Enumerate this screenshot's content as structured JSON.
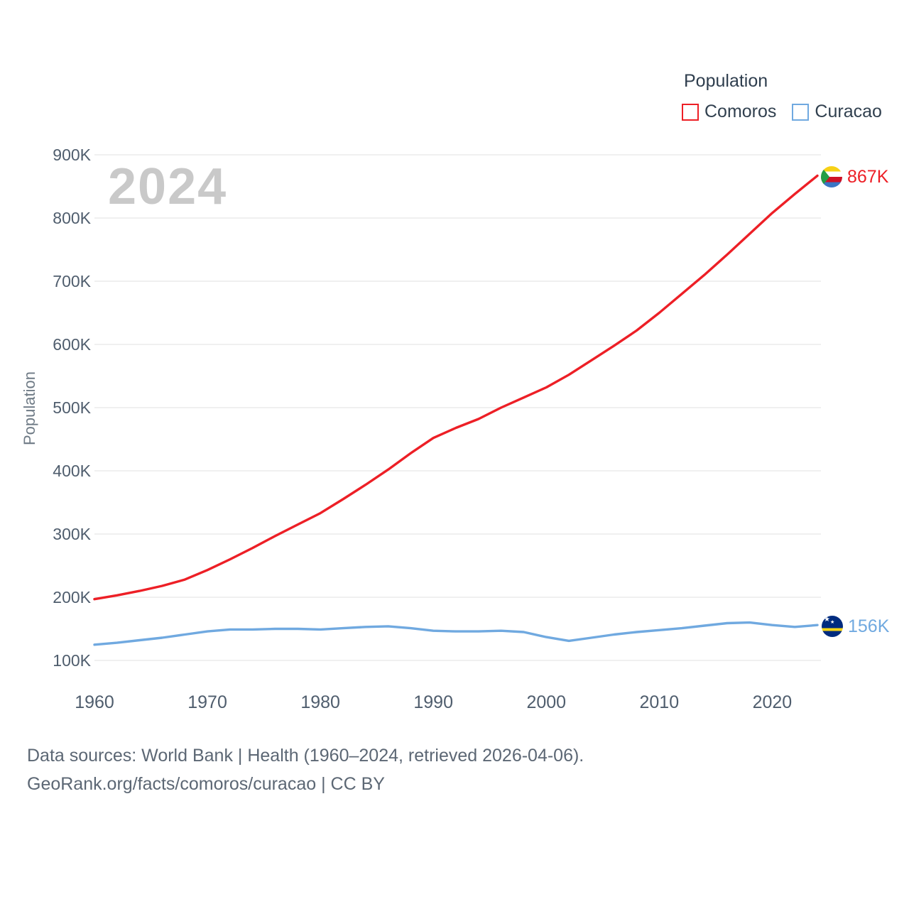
{
  "footer": {
    "line1": "Data sources: World Bank | Health (1960–2024, retrieved 2026-04-06).",
    "line2": "GeoRank.org/facts/comoros/curacao | CC BY"
  },
  "chart_data": {
    "type": "line",
    "title": "Population",
    "ylabel": "Population",
    "watermark": "2024",
    "grid": "horizontal",
    "legend_position": "top-right",
    "x_range": [
      1960,
      2024
    ],
    "y_range": [
      100000,
      900000
    ],
    "yticks": [
      {
        "v": 100000,
        "label": "100K"
      },
      {
        "v": 200000,
        "label": "200K"
      },
      {
        "v": 300000,
        "label": "300K"
      },
      {
        "v": 400000,
        "label": "400K"
      },
      {
        "v": 500000,
        "label": "500K"
      },
      {
        "v": 600000,
        "label": "600K"
      },
      {
        "v": 700000,
        "label": "700K"
      },
      {
        "v": 800000,
        "label": "800K"
      },
      {
        "v": 900000,
        "label": "900K"
      }
    ],
    "xticks": [
      {
        "v": 1960,
        "label": "1960"
      },
      {
        "v": 1970,
        "label": "1970"
      },
      {
        "v": 1980,
        "label": "1980"
      },
      {
        "v": 1990,
        "label": "1990"
      },
      {
        "v": 2000,
        "label": "2000"
      },
      {
        "v": 2010,
        "label": "2010"
      },
      {
        "v": 2020,
        "label": "2020"
      }
    ],
    "series": [
      {
        "name": "Comoros",
        "color": "#ed1f26",
        "end_label": "867K",
        "end_value": 867000,
        "x": [
          1960,
          1962,
          1964,
          1966,
          1968,
          1970,
          1972,
          1974,
          1976,
          1978,
          1980,
          1982,
          1984,
          1986,
          1988,
          1990,
          1992,
          1994,
          1996,
          1998,
          2000,
          2002,
          2004,
          2006,
          2008,
          2010,
          2012,
          2014,
          2016,
          2018,
          2020,
          2022,
          2024
        ],
        "values": [
          197000,
          203000,
          210000,
          218000,
          228000,
          243000,
          260000,
          278000,
          297000,
          315000,
          333000,
          355000,
          378000,
          402000,
          428000,
          452000,
          468000,
          482000,
          500000,
          516000,
          532000,
          552000,
          575000,
          598000,
          622000,
          650000,
          680000,
          710000,
          742000,
          775000,
          808000,
          838000,
          867000
        ]
      },
      {
        "name": "Curacao",
        "color": "#70a9e0",
        "end_label": "156K",
        "end_value": 156000,
        "x": [
          1960,
          1962,
          1964,
          1966,
          1968,
          1970,
          1972,
          1974,
          1976,
          1978,
          1980,
          1982,
          1984,
          1986,
          1988,
          1990,
          1992,
          1994,
          1996,
          1998,
          2000,
          2002,
          2004,
          2006,
          2008,
          2010,
          2012,
          2014,
          2016,
          2018,
          2020,
          2022,
          2024
        ],
        "values": [
          125000,
          128000,
          132000,
          136000,
          141000,
          146000,
          149000,
          149000,
          150000,
          150000,
          149000,
          151000,
          153000,
          154000,
          151000,
          147000,
          146000,
          146000,
          147000,
          145000,
          137000,
          131000,
          136000,
          141000,
          145000,
          148000,
          151000,
          155000,
          159000,
          160000,
          156000,
          153000,
          156000
        ]
      }
    ]
  }
}
